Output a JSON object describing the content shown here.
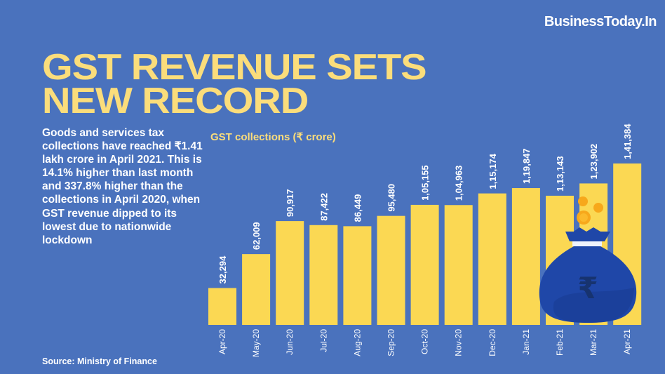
{
  "brand": "BusinessToday.In",
  "title_lines": [
    "GST REVENUE SETS",
    "NEW RECORD"
  ],
  "description": "Goods and services tax collections have reached ₹1.41 lakh crore in April 2021. This is 14.1% higher than last month and 337.8% higher than the collections in April 2020, when GST revenue dipped to its lowest due to nationwide lockdown",
  "source": "Source: Ministry of Finance",
  "colors": {
    "background": "#4a72bd",
    "accent": "#fbdd7b",
    "bar": "#fbd853",
    "bag": "#1f47a8"
  },
  "illustration": {
    "icon": "money-bag-rupee-icon",
    "symbol": "₹"
  },
  "chart_data": {
    "type": "bar",
    "title": "GST collections (₹ crore)",
    "xlabel": "",
    "ylabel": "",
    "categories": [
      "Apr-20",
      "May-20",
      "Jun-20",
      "Jul-20",
      "Aug-20",
      "Sep-20",
      "Oct-20",
      "Nov-20",
      "Dec-20",
      "Jan-21",
      "Feb-21",
      "Mar-21",
      "Apr-21"
    ],
    "values": [
      32294,
      62009,
      90917,
      87422,
      86449,
      95480,
      105155,
      104963,
      115174,
      119847,
      113143,
      123902,
      141384
    ],
    "value_labels": [
      "32,294",
      "62,009",
      "90,917",
      "87,422",
      "86,449",
      "95,480",
      "1,05,155",
      "1,04,963",
      "1,15,174",
      "1,19,847",
      "1,13,143",
      "1,23,902",
      "1,41,384"
    ],
    "ylim": [
      0,
      141384
    ],
    "grid": false,
    "legend": "none"
  }
}
